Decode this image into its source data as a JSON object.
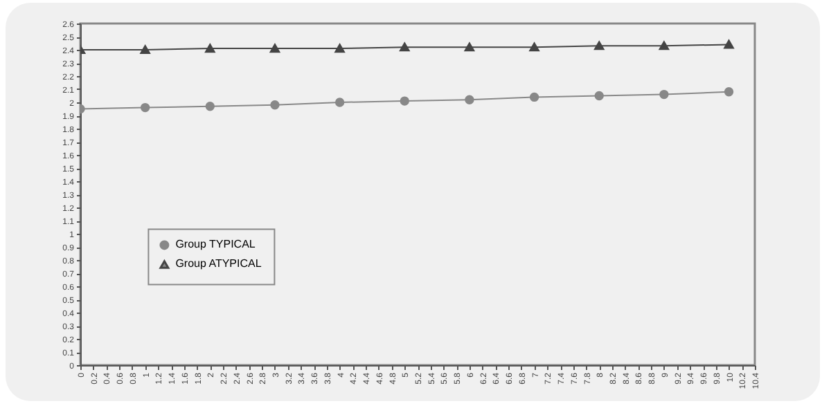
{
  "chart_data": {
    "type": "line",
    "x": [
      0,
      1,
      2,
      3,
      4,
      5,
      6,
      7,
      8,
      9,
      10
    ],
    "series": [
      {
        "name": "Group TYPICAL",
        "color": "#888888",
        "marker": "circle",
        "values": [
          1.95,
          1.96,
          1.97,
          1.98,
          2.0,
          2.01,
          2.02,
          2.04,
          2.05,
          2.06,
          2.08
        ]
      },
      {
        "name": "Group ATYPICAL",
        "color": "#444444",
        "marker": "triangle",
        "values": [
          2.4,
          2.4,
          2.41,
          2.41,
          2.41,
          2.42,
          2.42,
          2.42,
          2.43,
          2.43,
          2.44
        ]
      }
    ],
    "xlim": [
      0,
      10.4
    ],
    "xticks": [
      0,
      0.2,
      0.4,
      0.6,
      0.8,
      1,
      1.2,
      1.4,
      1.6,
      1.8,
      2,
      2.2,
      2.4,
      2.6,
      2.8,
      3,
      3.2,
      3.4,
      3.6,
      3.8,
      4,
      4.2,
      4.4,
      4.6,
      4.8,
      5,
      5.2,
      5.4,
      5.6,
      5.8,
      6,
      6.2,
      6.4,
      6.6,
      6.8,
      7,
      7.2,
      7.4,
      7.6,
      7.8,
      8,
      8.2,
      8.4,
      8.6,
      8.8,
      9,
      9.2,
      9.4,
      9.6,
      9.8,
      10,
      10.2,
      10.4
    ],
    "ylim": [
      0,
      2.6
    ],
    "yticks": [
      0,
      0.1,
      0.2,
      0.3,
      0.4,
      0.5,
      0.6,
      0.7,
      0.8,
      0.9,
      1,
      1.1,
      1.2,
      1.3,
      1.4,
      1.5,
      1.6,
      1.7,
      1.8,
      1.9,
      2,
      2.1,
      2.2,
      2.3,
      2.4,
      2.5,
      2.6
    ],
    "grid": false,
    "legend": "left"
  }
}
